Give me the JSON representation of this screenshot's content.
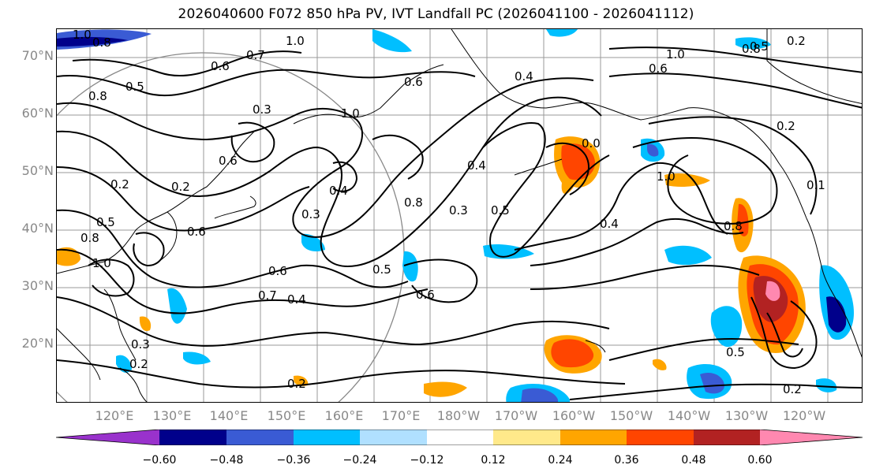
{
  "title": "2026040600 F072 850 hPa PV, IVT Landfall PC (2026041100 - 2026041112)",
  "map": {
    "latitude_labels": [
      "70°N",
      "60°N",
      "50°N",
      "40°N",
      "30°N",
      "20°N"
    ],
    "longitude_labels": [
      "120°E",
      "130°E",
      "140°E",
      "150°E",
      "160°E",
      "170°E",
      "180°W",
      "170°W",
      "160°W",
      "150°W",
      "140°W",
      "130°W",
      "120°W"
    ],
    "contour_labels": [
      "1.0",
      "0.8",
      "1.0",
      "0.6",
      "0.7",
      "0.5",
      "0.8",
      "0.3",
      "0.6",
      "0.2",
      "0.2",
      "0.5",
      "0.6",
      "0.8",
      "1.0",
      "0.6",
      "0.7",
      "0.4",
      "0.3",
      "0.2",
      "1.0",
      "0.3",
      "0.4",
      "0.6",
      "0.4",
      "0.5",
      "0.8",
      "0.3",
      "0.4",
      "0.6",
      "0.5",
      "1.0",
      "0.8",
      "0.2",
      "0.6",
      "0.5",
      "0.2",
      "0.1",
      "0.4",
      "1.0",
      "0.0",
      "0.8",
      "0.5",
      "0.2",
      "0.2"
    ]
  },
  "colorbar": {
    "tick_labels": [
      "−0.60",
      "−0.48",
      "−0.36",
      "−0.24",
      "−0.12",
      "0.12",
      "0.24",
      "0.36",
      "0.48",
      "0.60"
    ],
    "colors": [
      "#9932cc",
      "#00008b",
      "#3a5bd4",
      "#00bfff",
      "#b0e0ff",
      "#ffffff",
      "#ffe98a",
      "#ffa500",
      "#ff4500",
      "#b22222",
      "#ff88b0"
    ]
  }
}
